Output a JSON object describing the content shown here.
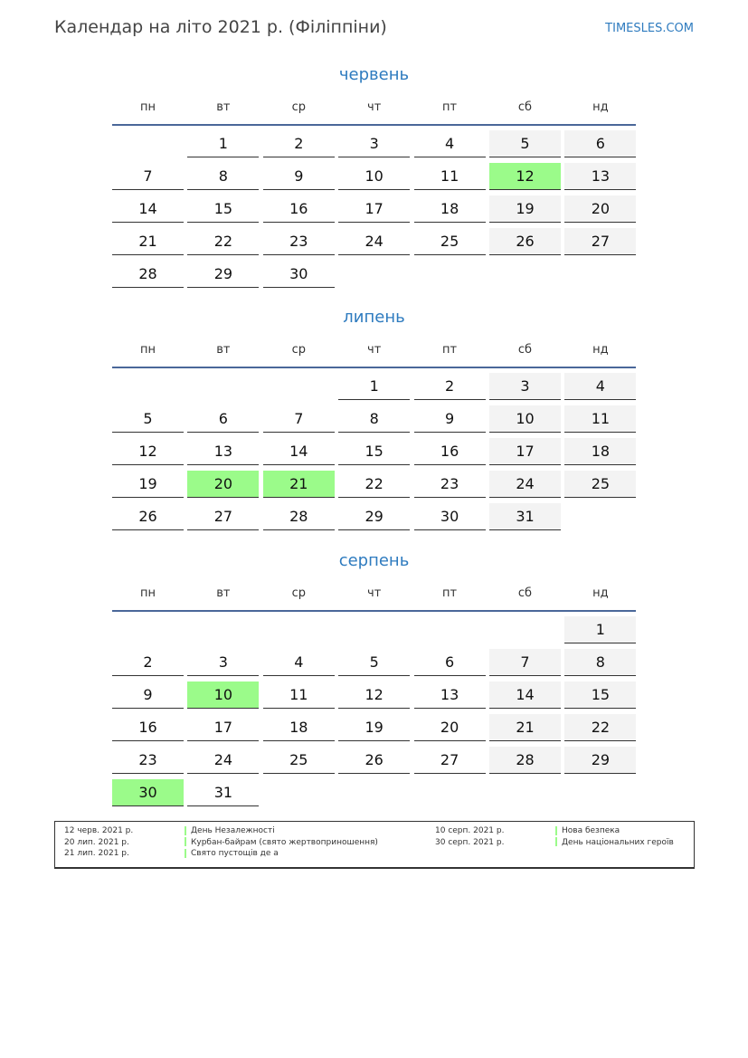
{
  "title": "Календар на літо 2021 р. (Філіппіни)",
  "site": "TIMESLES.COM",
  "weekdays": [
    "пн",
    "вт",
    "ср",
    "чт",
    "пт",
    "сб",
    "нд"
  ],
  "colors": {
    "accent": "#2e7bbf",
    "holiday": "#9bfb8a",
    "weekend": "#f3f3f3",
    "rule": "#4a6799"
  },
  "months": [
    {
      "name": "червень",
      "start_weekday": 2,
      "days": 30,
      "holidays": [
        12
      ]
    },
    {
      "name": "липень",
      "start_weekday": 4,
      "days": 31,
      "holidays": [
        20,
        21
      ]
    },
    {
      "name": "серпень",
      "start_weekday": 7,
      "days": 31,
      "holidays": [
        10,
        30
      ]
    }
  ],
  "legend": [
    {
      "date": "12 черв. 2021 р.",
      "name": "День Незалежності"
    },
    {
      "date": "20 лип. 2021 р.",
      "name": "Курбан-байрам (свято жертвоприношення)"
    },
    {
      "date": "21 лип. 2021 р.",
      "name": "Свято пустощів де а"
    },
    {
      "date": "10 серп. 2021 р.",
      "name": "Нова безпека"
    },
    {
      "date": "30 серп. 2021 р.",
      "name": "День національних героїв"
    }
  ]
}
